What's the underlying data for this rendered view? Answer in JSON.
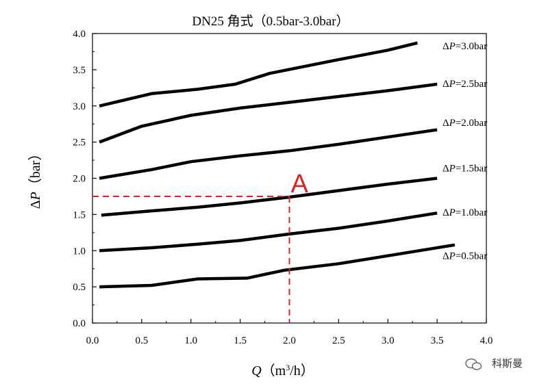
{
  "chart_data": {
    "type": "line",
    "title": "DN25 角式（0.5bar-3.0bar）",
    "xlabel": {
      "symbol": "Q",
      "unit_prefix": "（m",
      "unit_sup": "3",
      "unit_suffix": "/h）"
    },
    "ylabel": {
      "symbol": "ΔP",
      "unit": "（bar）"
    },
    "xlim": [
      0.0,
      4.0
    ],
    "ylim": [
      0.0,
      4.0
    ],
    "x_ticks": [
      "0.0",
      "0.5",
      "1.0",
      "1.5",
      "2.0",
      "2.5",
      "3.0",
      "3.5",
      "4.0"
    ],
    "y_ticks": [
      "0.0",
      "0.5",
      "1.0",
      "1.5",
      "2.0",
      "2.5",
      "3.0",
      "3.5",
      "4.0"
    ],
    "grid": false,
    "line_color": "#000000",
    "series": [
      {
        "label": "ΔP=0.5bar",
        "x": [
          0.07,
          0.6,
          1.07,
          1.57,
          1.95,
          2.5,
          3.0,
          3.68
        ],
        "y": [
          0.5,
          0.52,
          0.61,
          0.62,
          0.73,
          0.82,
          0.93,
          1.08
        ]
      },
      {
        "label": "ΔP=1.0bar",
        "x": [
          0.07,
          0.6,
          1.07,
          1.5,
          2.0,
          2.5,
          3.0,
          3.5
        ],
        "y": [
          1.0,
          1.04,
          1.09,
          1.14,
          1.23,
          1.31,
          1.41,
          1.52
        ]
      },
      {
        "label": "ΔP=1.5bar",
        "x": [
          0.09,
          0.6,
          1.07,
          1.5,
          2.0,
          2.5,
          3.0,
          3.5
        ],
        "y": [
          1.49,
          1.55,
          1.6,
          1.66,
          1.74,
          1.83,
          1.92,
          2.0
        ]
      },
      {
        "label": "ΔP=2.0bar",
        "x": [
          0.07,
          0.6,
          1.0,
          1.5,
          2.0,
          2.5,
          3.0,
          3.5
        ],
        "y": [
          2.0,
          2.12,
          2.23,
          2.31,
          2.38,
          2.47,
          2.57,
          2.67
        ]
      },
      {
        "label": "ΔP=2.5bar",
        "x": [
          0.07,
          0.5,
          1.0,
          1.5,
          2.0,
          2.5,
          3.0,
          3.5
        ],
        "y": [
          2.5,
          2.72,
          2.87,
          2.97,
          3.05,
          3.13,
          3.21,
          3.3
        ]
      },
      {
        "label": "ΔP=3.0bar",
        "x": [
          0.07,
          0.6,
          1.07,
          1.45,
          1.8,
          2.5,
          3.0,
          3.3
        ],
        "y": [
          3.0,
          3.17,
          3.23,
          3.3,
          3.45,
          3.64,
          3.77,
          3.87
        ]
      }
    ],
    "annotation": {
      "label": "A",
      "x": 2.0,
      "y": 1.75,
      "color": "#d9232a",
      "style": "dashed"
    }
  },
  "watermark": "科斯曼"
}
